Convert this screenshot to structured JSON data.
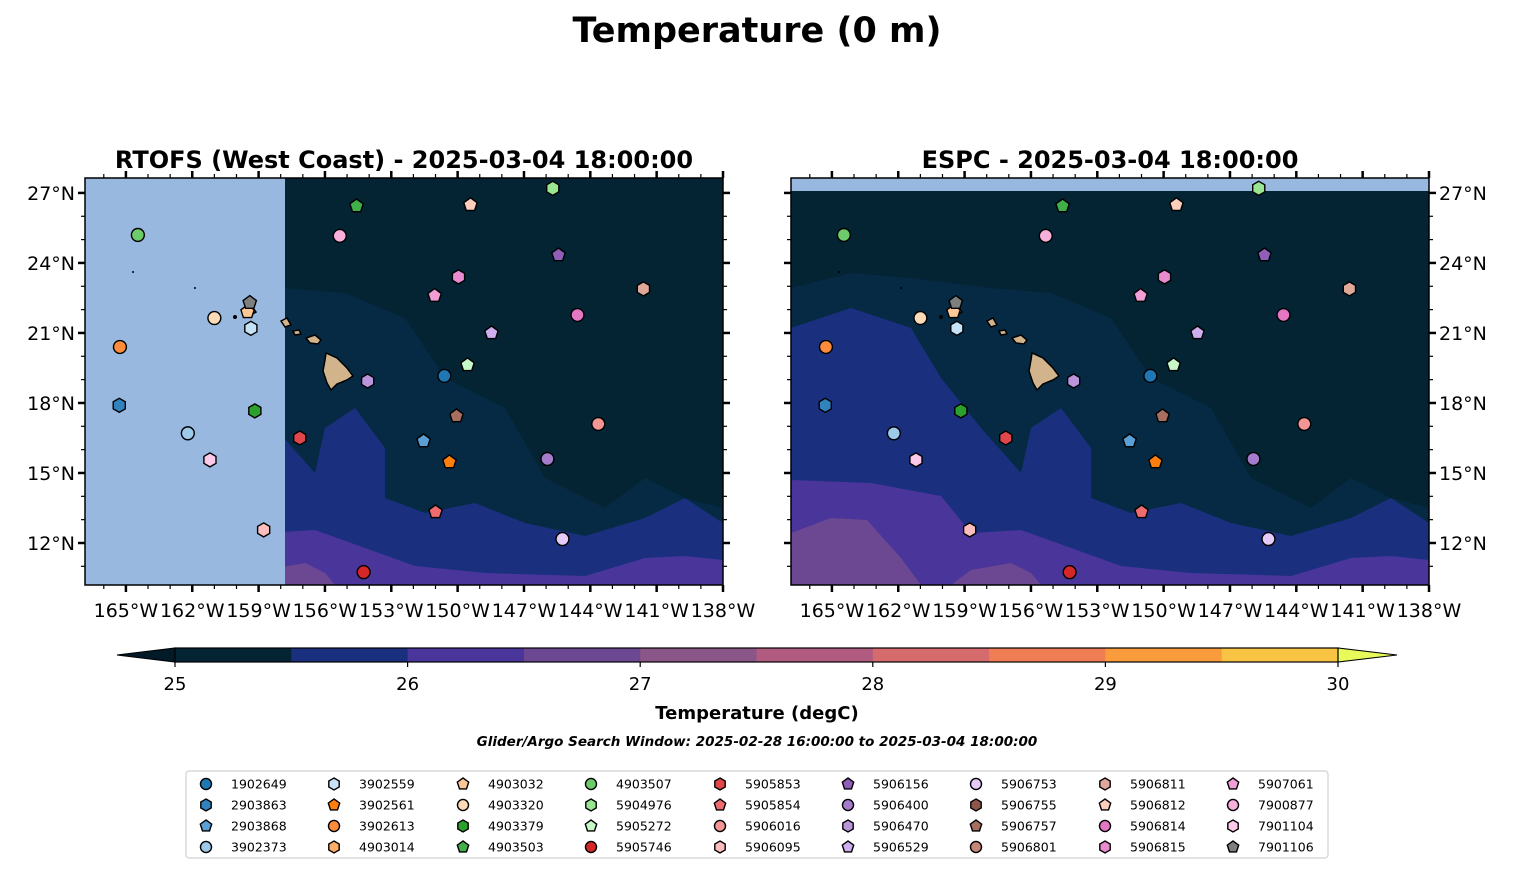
{
  "figure": {
    "title": "Temperature (0 m)",
    "search_window": "Glider/Argo Search Window: 2025-02-28 16:00:00 to 2025-03-04 18:00:00"
  },
  "colors": {
    "land": "#d2b48c",
    "nodata": "#98b8e0",
    "levels": [
      "#042333",
      "#1b2f7f",
      "#4a359b",
      "#6b4891",
      "#8a5587",
      "#b05b7f",
      "#d56b6c",
      "#ef7e55",
      "#fb9c3c",
      "#f9c343"
    ],
    "under": "#031a28",
    "over": "#e7fa5a"
  },
  "chart_data": [
    {
      "type": "heatmap",
      "title": "RTOFS (West Coast) - 2025-03-04 18:00:00",
      "lon_range": [
        -166.85,
        -138
      ],
      "lat_range": [
        10.2,
        27.64
      ],
      "xticks": [
        "165°W",
        "162°W",
        "159°W",
        "156°W",
        "153°W",
        "150°W",
        "147°W",
        "144°W",
        "141°W",
        "138°W"
      ],
      "yticks": [
        "12°N",
        "15°N",
        "18°N",
        "21°N",
        "24°N",
        "27°N"
      ],
      "nodata_region": "west of 157.8°W"
    },
    {
      "type": "heatmap",
      "title": "ESPC - 2025-03-04 18:00:00",
      "lon_range": [
        -166.85,
        -138
      ],
      "lat_range": [
        10.2,
        27.64
      ],
      "xticks": [
        "165°W",
        "162°W",
        "159°W",
        "156°W",
        "153°W",
        "150°W",
        "147°W",
        "144°W",
        "141°W",
        "138°W"
      ],
      "yticks": [
        "12°N",
        "15°N",
        "18°N",
        "21°N",
        "24°N",
        "27°N"
      ],
      "nodata_region": "north of 27.1°N"
    }
  ],
  "colorbar": {
    "label": "Temperature (degC)",
    "ticks": [
      "25",
      "26",
      "27",
      "28",
      "29",
      "30"
    ],
    "min": 25,
    "max": 30,
    "step": 0.5
  },
  "floats": [
    {
      "id": "1902649",
      "marker": "o",
      "color": "#1f77b4",
      "lon": -150.6,
      "lat": 19.16
    },
    {
      "id": "2903863",
      "marker": "h",
      "color": "#3282bd",
      "lon": -165.3,
      "lat": 17.9
    },
    {
      "id": "2903868",
      "marker": "p",
      "color": "#5aa0d6",
      "lon": -151.54,
      "lat": 16.37
    },
    {
      "id": "3902373",
      "marker": "o",
      "color": "#9ecae9",
      "lon": -162.2,
      "lat": 16.7
    },
    {
      "id": "3902559",
      "marker": "h",
      "color": "#c6e2f7",
      "lon": -159.35,
      "lat": 21.2
    },
    {
      "id": "3902561",
      "marker": "p",
      "color": "#ff7f0e",
      "lon": -150.37,
      "lat": 15.47
    },
    {
      "id": "3902613",
      "marker": "o",
      "color": "#fd8d3c",
      "lon": -165.27,
      "lat": 20.4
    },
    {
      "id": "4903014",
      "marker": "h",
      "color": "#fdae6b",
      "lon": null,
      "lat": null
    },
    {
      "id": "4903032",
      "marker": "p",
      "color": "#fdc896",
      "lon": -159.5,
      "lat": 21.9
    },
    {
      "id": "4903320",
      "marker": "o",
      "color": "#fddbb8",
      "lon": -161.0,
      "lat": 21.64
    },
    {
      "id": "4903379",
      "marker": "h",
      "color": "#2ca02c",
      "lon": -159.17,
      "lat": 17.66
    },
    {
      "id": "4903503",
      "marker": "p",
      "color": "#41b04b",
      "lon": -154.57,
      "lat": 26.44
    },
    {
      "id": "4903507",
      "marker": "o",
      "color": "#6ccb6a",
      "lon": -164.46,
      "lat": 25.2
    },
    {
      "id": "5904976",
      "marker": "h",
      "color": "#98e592",
      "lon": -145.7,
      "lat": 27.2
    },
    {
      "id": "5905272",
      "marker": "p",
      "color": "#c7f9c8",
      "lon": -149.55,
      "lat": 19.63
    },
    {
      "id": "5905746",
      "marker": "o",
      "color": "#d62728",
      "lon": -154.25,
      "lat": 10.75
    },
    {
      "id": "5905853",
      "marker": "h",
      "color": "#e0464a",
      "lon": -157.14,
      "lat": 16.5
    },
    {
      "id": "5905854",
      "marker": "p",
      "color": "#ee6b6f",
      "lon": -151.0,
      "lat": 13.33
    },
    {
      "id": "5906016",
      "marker": "o",
      "color": "#f49595",
      "lon": -143.64,
      "lat": 17.1
    },
    {
      "id": "5906095",
      "marker": "h",
      "color": "#fcbdbd",
      "lon": -158.77,
      "lat": 12.56
    },
    {
      "id": "5906156",
      "marker": "p",
      "color": "#8f5fb8",
      "lon": -145.44,
      "lat": 24.34
    },
    {
      "id": "5906400",
      "marker": "o",
      "color": "#a57ccb",
      "lon": -145.94,
      "lat": 15.6
    },
    {
      "id": "5906470",
      "marker": "h",
      "color": "#ba95dc",
      "lon": -154.07,
      "lat": 18.94
    },
    {
      "id": "5906529",
      "marker": "p",
      "color": "#cfaeef",
      "lon": -148.47,
      "lat": 21.0
    },
    {
      "id": "5906753",
      "marker": "o",
      "color": "#e5cbf8",
      "lon": -145.26,
      "lat": 12.17
    },
    {
      "id": "5906755",
      "marker": "h",
      "color": "#8c564b",
      "lon": null,
      "lat": null
    },
    {
      "id": "5906757",
      "marker": "p",
      "color": "#a86e5f",
      "lon": -150.05,
      "lat": 17.44
    },
    {
      "id": "5906801",
      "marker": "o",
      "color": "#c4877a",
      "lon": null,
      "lat": null
    },
    {
      "id": "5906811",
      "marker": "h",
      "color": "#dfa898",
      "lon": -141.6,
      "lat": 22.89
    },
    {
      "id": "5906812",
      "marker": "p",
      "color": "#fdcdbd",
      "lon": -149.42,
      "lat": 26.49
    },
    {
      "id": "5906814",
      "marker": "o",
      "color": "#e377c2",
      "lon": -144.58,
      "lat": 21.77
    },
    {
      "id": "5906815",
      "marker": "h",
      "color": "#e98bcf",
      "lon": -149.96,
      "lat": 23.4
    },
    {
      "id": "5907061",
      "marker": "p",
      "color": "#f29ed6",
      "lon": -151.04,
      "lat": 22.6
    },
    {
      "id": "7900877",
      "marker": "o",
      "color": "#f7b0dc",
      "lon": -155.33,
      "lat": 25.16
    },
    {
      "id": "7901104",
      "marker": "h",
      "color": "#fcc9ea",
      "lon": -161.2,
      "lat": 15.56
    },
    {
      "id": "7901106",
      "marker": "p",
      "color": "#7f7f7f",
      "lon": -159.4,
      "lat": 22.3
    }
  ]
}
